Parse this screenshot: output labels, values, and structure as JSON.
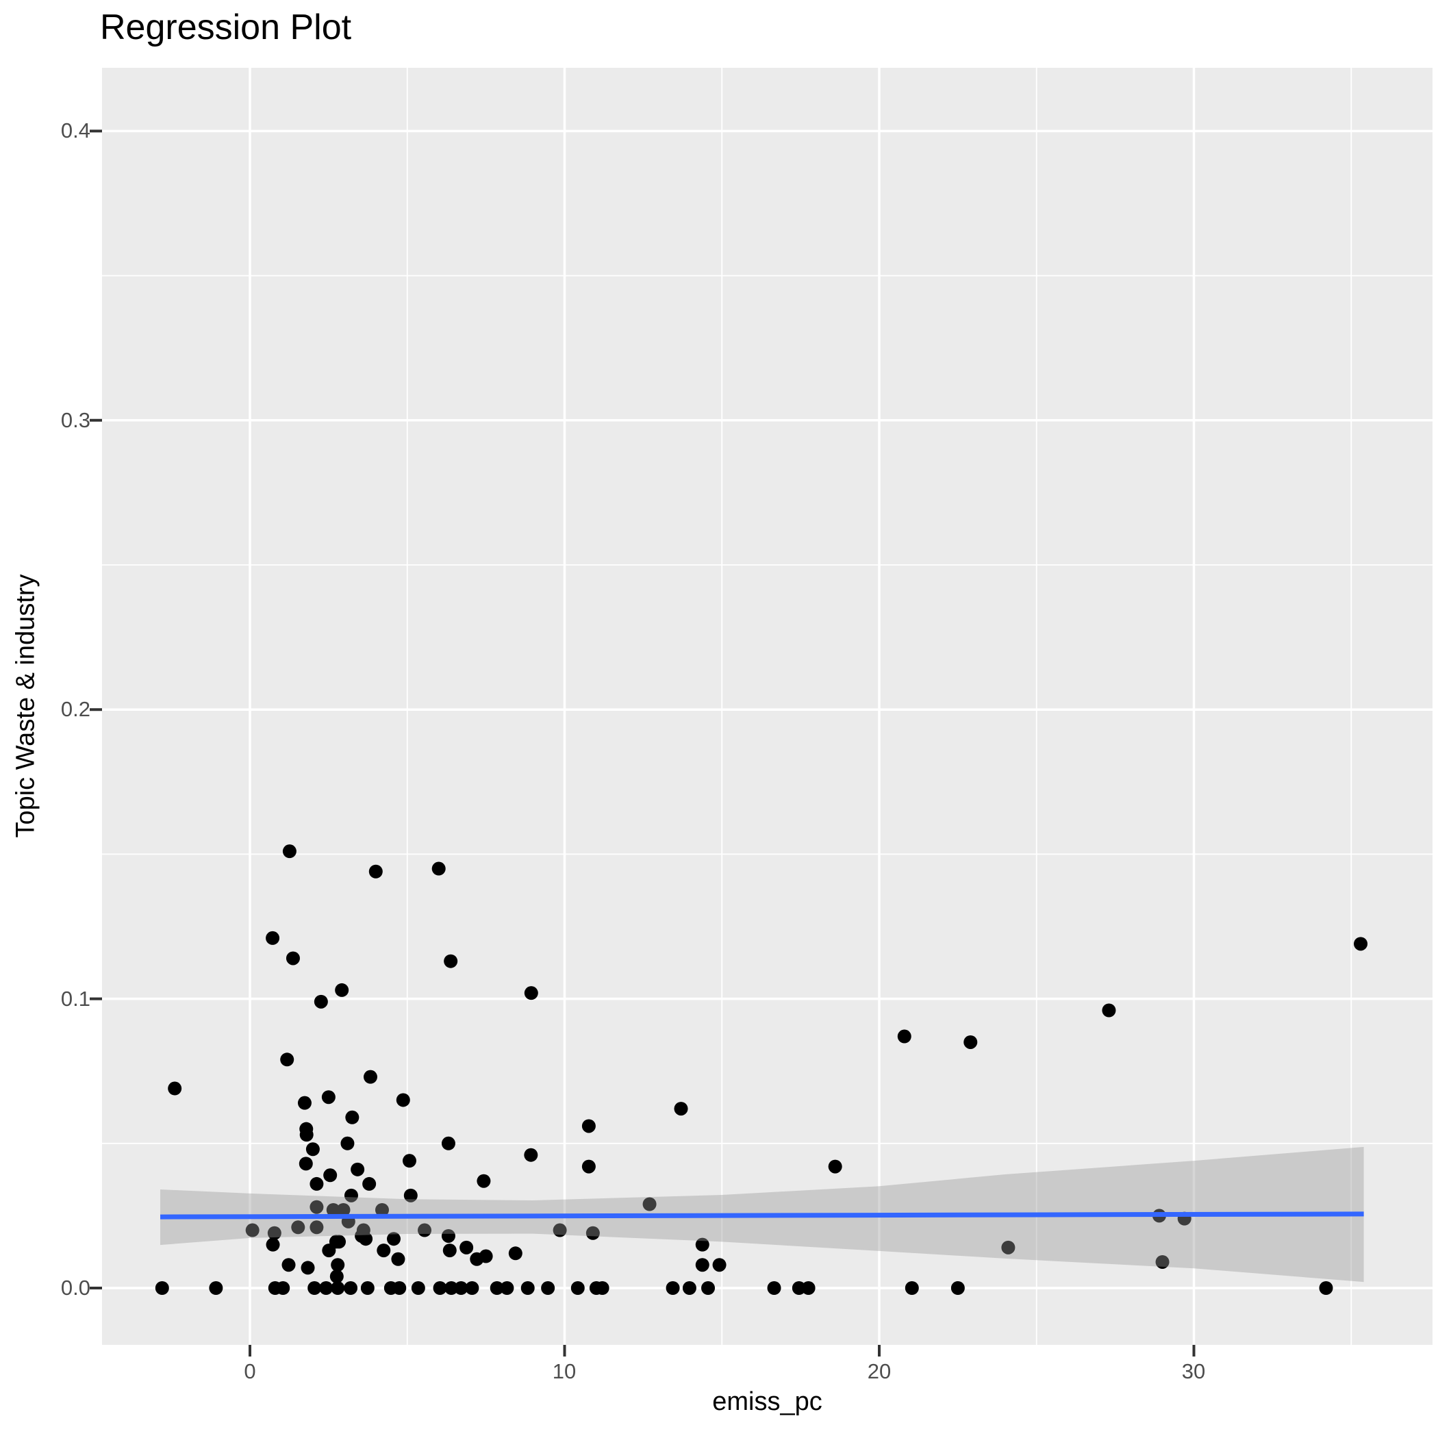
{
  "chart_data": {
    "type": "scatter",
    "title": "Regression Plot",
    "xlabel": "emiss_pc",
    "ylabel": "Topic Waste & industry",
    "x_tick_labels": [
      "0",
      "10",
      "20",
      "30"
    ],
    "x_tick_values": [
      0,
      10,
      20,
      30
    ],
    "x_minor_values": [
      5,
      15,
      25,
      35
    ],
    "y_tick_labels": [
      "0.0",
      "0.1",
      "0.2",
      "0.3",
      "0.4"
    ],
    "y_tick_values": [
      0,
      0.1,
      0.2,
      0.3,
      0.4
    ],
    "y_minor_values": [
      0.05,
      0.15,
      0.25,
      0.35
    ],
    "xlim": [
      -4.7,
      37.6
    ],
    "ylim": [
      -0.0196,
      0.4219
    ],
    "grid": "on",
    "legend": "none",
    "colors": {
      "panel": "#EBEBEB",
      "grid": "#FFFFFF",
      "point": "#000000",
      "tick_mark": "#333333",
      "tick_text": "#4D4D4D",
      "line": "#3366FF",
      "band_fill": "#999999"
    },
    "regression_line": {
      "x0": -2.85,
      "y0": 0.0246,
      "x1": 35.4,
      "y1": 0.0256
    },
    "ci_band": {
      "opacity": 0.4,
      "top": [
        [
          -2.85,
          0.0341
        ],
        [
          0,
          0.0327
        ],
        [
          5,
          0.0307
        ],
        [
          9,
          0.0303
        ],
        [
          15,
          0.0322
        ],
        [
          20,
          0.0352
        ],
        [
          24,
          0.0393
        ],
        [
          30,
          0.044
        ],
        [
          35.4,
          0.0488
        ]
      ],
      "bottom": [
        [
          -2.85,
          0.0149
        ],
        [
          0,
          0.0173
        ],
        [
          5,
          0.0187
        ],
        [
          9,
          0.0188
        ],
        [
          15,
          0.016
        ],
        [
          20,
          0.0128
        ],
        [
          24,
          0.0102
        ],
        [
          30,
          0.0068
        ],
        [
          35.4,
          0.0021
        ]
      ]
    },
    "points": [
      [
        1.26,
        0.151
      ],
      [
        4.0,
        0.144
      ],
      [
        6.0,
        0.145
      ],
      [
        0.72,
        0.121
      ],
      [
        1.37,
        0.114
      ],
      [
        6.38,
        0.113
      ],
      [
        2.92,
        0.103
      ],
      [
        2.26,
        0.099
      ],
      [
        8.94,
        0.102
      ],
      [
        1.18,
        0.079
      ],
      [
        3.83,
        0.073
      ],
      [
        -2.39,
        0.069
      ],
      [
        20.8,
        0.087
      ],
      [
        22.9,
        0.085
      ],
      [
        35.3,
        0.119
      ],
      [
        27.3,
        0.096
      ],
      [
        1.74,
        0.064
      ],
      [
        2.5,
        0.066
      ],
      [
        4.87,
        0.065
      ],
      [
        3.25,
        0.059
      ],
      [
        1.79,
        0.055
      ],
      [
        1.8,
        0.053
      ],
      [
        2.0,
        0.048
      ],
      [
        3.1,
        0.05
      ],
      [
        1.78,
        0.043
      ],
      [
        2.55,
        0.039
      ],
      [
        3.42,
        0.041
      ],
      [
        2.12,
        0.036
      ],
      [
        3.79,
        0.036
      ],
      [
        3.22,
        0.032
      ],
      [
        5.11,
        0.032
      ],
      [
        6.31,
        0.05
      ],
      [
        7.43,
        0.037
      ],
      [
        8.93,
        0.046
      ],
      [
        5.07,
        0.044
      ],
      [
        2.12,
        0.028
      ],
      [
        2.65,
        0.027
      ],
      [
        2.97,
        0.027
      ],
      [
        2.12,
        0.021
      ],
      [
        3.13,
        0.023
      ],
      [
        4.2,
        0.027
      ],
      [
        0.08,
        0.02
      ],
      [
        1.53,
        0.021
      ],
      [
        3.61,
        0.02
      ],
      [
        3.68,
        0.017
      ],
      [
        5.55,
        0.02
      ],
      [
        6.31,
        0.018
      ],
      [
        4.57,
        0.017
      ],
      [
        2.83,
        0.016
      ],
      [
        0.78,
        0.019
      ],
      [
        0.73,
        0.015
      ],
      [
        1.23,
        0.008
      ],
      [
        1.84,
        0.007
      ],
      [
        2.51,
        0.013
      ],
      [
        2.74,
        0.016
      ],
      [
        2.79,
        0.008
      ],
      [
        2.76,
        0.004
      ],
      [
        3.55,
        0.018
      ],
      [
        4.25,
        0.013
      ],
      [
        4.71,
        0.01
      ],
      [
        6.35,
        0.013
      ],
      [
        6.88,
        0.014
      ],
      [
        7.21,
        0.01
      ],
      [
        7.5,
        0.011
      ],
      [
        8.44,
        0.012
      ],
      [
        13.7,
        0.062
      ],
      [
        10.77,
        0.056
      ],
      [
        10.77,
        0.042
      ],
      [
        18.6,
        0.042
      ],
      [
        12.7,
        0.029
      ],
      [
        9.85,
        0.02
      ],
      [
        10.9,
        0.019
      ],
      [
        14.38,
        0.015
      ],
      [
        14.38,
        0.008
      ],
      [
        14.92,
        0.008
      ],
      [
        28.9,
        0.025
      ],
      [
        29.7,
        0.024
      ],
      [
        24.1,
        0.014
      ],
      [
        29.0,
        0.009
      ],
      [
        -2.79,
        0
      ],
      [
        -1.08,
        0
      ],
      [
        0.8,
        0
      ],
      [
        1.05,
        0
      ],
      [
        2.05,
        0
      ],
      [
        2.42,
        0
      ],
      [
        2.79,
        0
      ],
      [
        3.2,
        0
      ],
      [
        3.74,
        0
      ],
      [
        4.48,
        0
      ],
      [
        4.75,
        0
      ],
      [
        5.35,
        0
      ],
      [
        6.04,
        0
      ],
      [
        6.4,
        0
      ],
      [
        6.71,
        0
      ],
      [
        7.06,
        0
      ],
      [
        7.85,
        0
      ],
      [
        8.17,
        0
      ],
      [
        8.83,
        0
      ],
      [
        9.47,
        0
      ],
      [
        10.42,
        0
      ],
      [
        11.01,
        0
      ],
      [
        11.2,
        0
      ],
      [
        13.44,
        0
      ],
      [
        13.97,
        0
      ],
      [
        14.56,
        0
      ],
      [
        16.66,
        0
      ],
      [
        17.45,
        0
      ],
      [
        17.75,
        0
      ],
      [
        21.04,
        0
      ],
      [
        22.5,
        0
      ],
      [
        34.2,
        0
      ]
    ]
  }
}
